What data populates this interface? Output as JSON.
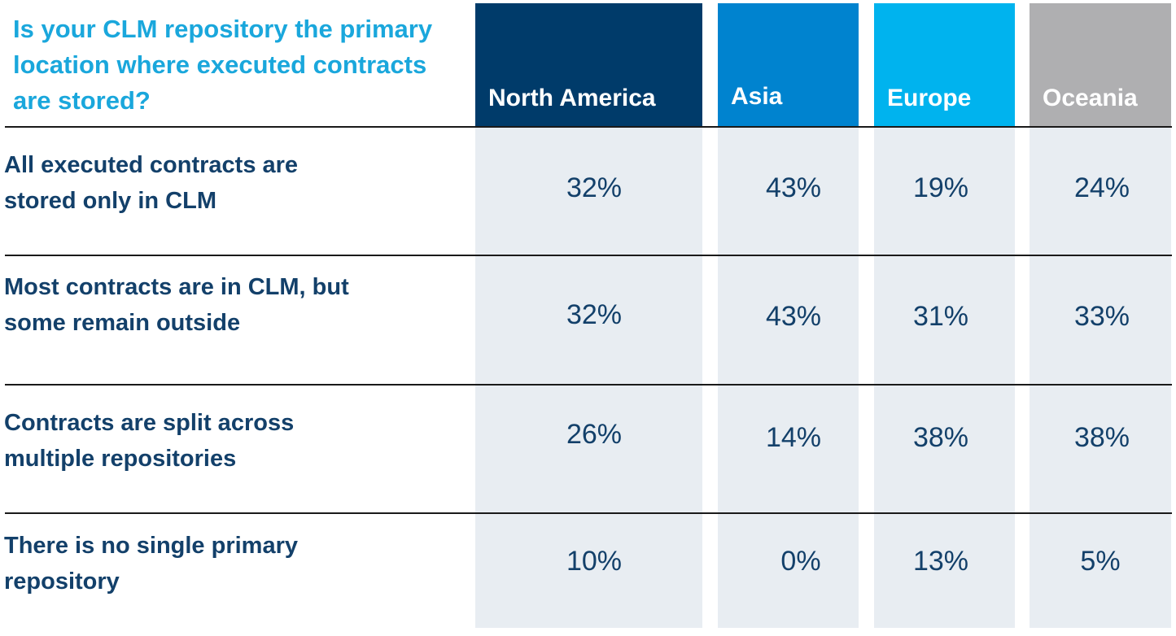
{
  "chart_data": {
    "type": "table",
    "title": "Is your CLM repository the primary location where executed contracts are stored?",
    "columns": [
      {
        "name": "North America",
        "color": "#003b6a"
      },
      {
        "name": "Asia",
        "color": "#0083cf"
      },
      {
        "name": "Europe",
        "color": "#00b3ee"
      },
      {
        "name": "Oceania",
        "color": "#afafb1"
      }
    ],
    "rows": [
      {
        "label": "All executed contracts are stored only in CLM",
        "values": [
          "32%",
          "43%",
          "19%",
          "24%"
        ]
      },
      {
        "label": "Most contracts are in CLM, but some remain outside",
        "values": [
          "32%",
          "43%",
          "31%",
          "33%"
        ]
      },
      {
        "label": "Contracts are split across multiple repositories",
        "values": [
          "26%",
          "14%",
          "38%",
          "38%"
        ]
      },
      {
        "label": "There is no single primary repository",
        "values": [
          "10%",
          "0%",
          "13%",
          "5%"
        ]
      }
    ]
  }
}
